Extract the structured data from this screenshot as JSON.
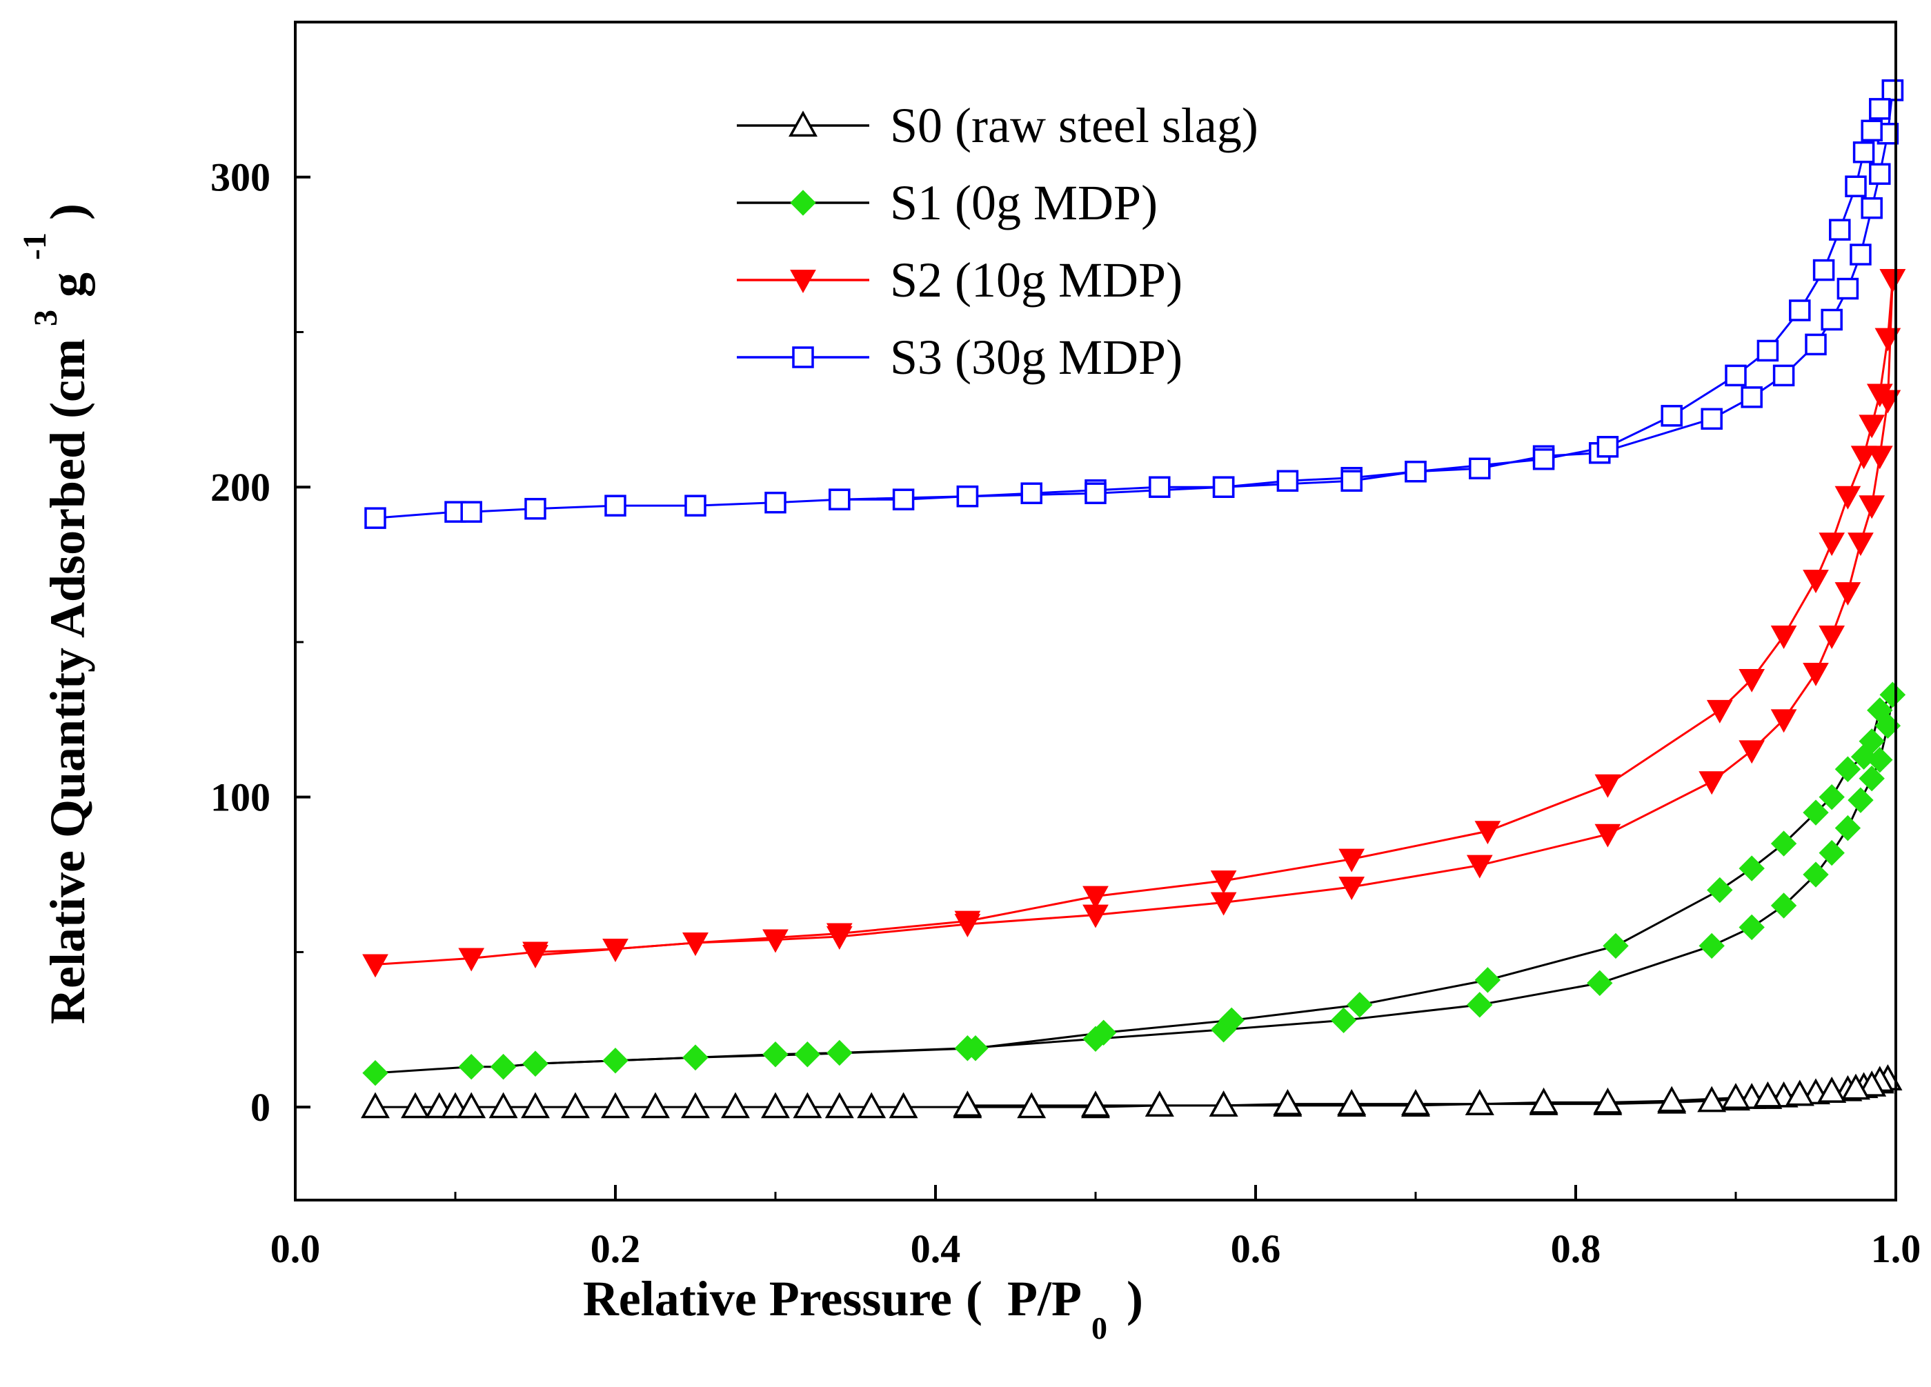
{
  "chart_data": {
    "type": "line",
    "xlabel": "Relative Pressure",
    "xlabel_unit": {
      "open": "(",
      "main": "P/P",
      "sub": "0",
      "close": ")"
    },
    "ylabel": "Relative Quantity Adsorbed (cm",
    "ylabel_unit": {
      "sup3": "3",
      "mid": " g",
      "sup_neg1": "-1",
      "close": ")"
    },
    "xlim": [
      0.0,
      1.0
    ],
    "ylim": [
      -30,
      350
    ],
    "x_ticks": [
      "0.0",
      "0.2",
      "0.4",
      "0.6",
      "0.8",
      "1.0"
    ],
    "y_ticks": [
      "0",
      "100",
      "200",
      "300"
    ],
    "legend_position": "top-center",
    "series": [
      {
        "name": "S0 (raw steel slag)",
        "color": "#000000",
        "marker": "triangle-up-open",
        "adsorption": [
          [
            0.05,
            0
          ],
          [
            0.075,
            0
          ],
          [
            0.09,
            0
          ],
          [
            0.1,
            0
          ],
          [
            0.11,
            0
          ],
          [
            0.13,
            0
          ],
          [
            0.15,
            0
          ],
          [
            0.175,
            0
          ],
          [
            0.2,
            0
          ],
          [
            0.225,
            0
          ],
          [
            0.25,
            0
          ],
          [
            0.275,
            0
          ],
          [
            0.3,
            0
          ],
          [
            0.32,
            0
          ],
          [
            0.34,
            0
          ],
          [
            0.36,
            0
          ],
          [
            0.38,
            0
          ],
          [
            0.42,
            0
          ],
          [
            0.46,
            0
          ],
          [
            0.5,
            0
          ],
          [
            0.54,
            0.5
          ],
          [
            0.58,
            0.5
          ],
          [
            0.62,
            0.5
          ],
          [
            0.66,
            0.5
          ],
          [
            0.7,
            0.5
          ],
          [
            0.74,
            1
          ],
          [
            0.78,
            1
          ],
          [
            0.82,
            1
          ],
          [
            0.86,
            1.5
          ],
          [
            0.885,
            2
          ],
          [
            0.9,
            2.5
          ],
          [
            0.91,
            3
          ],
          [
            0.92,
            3
          ],
          [
            0.93,
            3.5
          ],
          [
            0.94,
            4
          ],
          [
            0.95,
            4.5
          ],
          [
            0.96,
            5
          ],
          [
            0.97,
            5.5
          ],
          [
            0.98,
            6.5
          ],
          [
            0.99,
            8
          ],
          [
            0.995,
            9
          ]
        ],
        "desorption": [
          [
            0.995,
            9
          ],
          [
            0.99,
            8.5
          ],
          [
            0.985,
            7
          ],
          [
            0.975,
            6
          ],
          [
            0.96,
            5
          ],
          [
            0.94,
            4
          ],
          [
            0.92,
            3.5
          ],
          [
            0.9,
            3
          ],
          [
            0.86,
            2
          ],
          [
            0.82,
            1.5
          ],
          [
            0.78,
            1.5
          ],
          [
            0.74,
            1
          ],
          [
            0.7,
            1
          ],
          [
            0.66,
            1
          ],
          [
            0.62,
            1
          ],
          [
            0.58,
            0.5
          ],
          [
            0.54,
            0.5
          ],
          [
            0.5,
            0.5
          ],
          [
            0.42,
            0.5
          ]
        ]
      },
      {
        "name": "S1 (0g MDP)",
        "color": "#000000",
        "marker_color": "#22e010",
        "marker": "diamond-filled",
        "adsorption": [
          [
            0.05,
            11
          ],
          [
            0.11,
            13
          ],
          [
            0.13,
            13
          ],
          [
            0.15,
            14
          ],
          [
            0.2,
            15
          ],
          [
            0.25,
            16
          ],
          [
            0.3,
            17
          ],
          [
            0.34,
            17.5
          ],
          [
            0.42,
            19
          ],
          [
            0.5,
            22
          ],
          [
            0.58,
            25
          ],
          [
            0.655,
            28
          ],
          [
            0.74,
            33
          ],
          [
            0.815,
            40
          ],
          [
            0.885,
            52
          ],
          [
            0.91,
            58
          ],
          [
            0.93,
            65
          ],
          [
            0.95,
            75
          ],
          [
            0.96,
            82
          ],
          [
            0.97,
            90
          ],
          [
            0.978,
            99
          ],
          [
            0.985,
            106
          ],
          [
            0.99,
            112
          ],
          [
            0.995,
            123
          ],
          [
            0.998,
            133
          ]
        ],
        "desorption": [
          [
            0.998,
            133
          ],
          [
            0.99,
            128
          ],
          [
            0.985,
            118
          ],
          [
            0.98,
            113
          ],
          [
            0.97,
            109
          ],
          [
            0.96,
            100
          ],
          [
            0.95,
            95
          ],
          [
            0.93,
            85
          ],
          [
            0.91,
            77
          ],
          [
            0.89,
            70
          ],
          [
            0.825,
            52
          ],
          [
            0.745,
            41
          ],
          [
            0.665,
            33
          ],
          [
            0.585,
            28
          ],
          [
            0.505,
            24
          ],
          [
            0.425,
            19
          ],
          [
            0.32,
            17
          ],
          [
            0.25,
            16
          ],
          [
            0.15,
            14
          ],
          [
            0.13,
            13
          ]
        ]
      },
      {
        "name": "S2 (10g MDP)",
        "color": "#ff0000",
        "marker": "triangle-down-filled",
        "adsorption": [
          [
            0.05,
            46
          ],
          [
            0.11,
            48
          ],
          [
            0.15,
            50
          ],
          [
            0.2,
            51
          ],
          [
            0.25,
            53
          ],
          [
            0.3,
            54
          ],
          [
            0.34,
            55
          ],
          [
            0.42,
            59
          ],
          [
            0.5,
            62
          ],
          [
            0.58,
            66
          ],
          [
            0.66,
            71
          ],
          [
            0.74,
            78
          ],
          [
            0.82,
            88
          ],
          [
            0.885,
            105
          ],
          [
            0.91,
            115
          ],
          [
            0.93,
            125
          ],
          [
            0.95,
            140
          ],
          [
            0.96,
            152
          ],
          [
            0.97,
            166
          ],
          [
            0.978,
            182
          ],
          [
            0.985,
            194
          ],
          [
            0.99,
            210
          ],
          [
            0.995,
            228
          ],
          [
            0.998,
            267
          ]
        ],
        "desorption": [
          [
            0.998,
            267
          ],
          [
            0.995,
            248
          ],
          [
            0.99,
            230
          ],
          [
            0.985,
            220
          ],
          [
            0.98,
            210
          ],
          [
            0.97,
            197
          ],
          [
            0.96,
            182
          ],
          [
            0.95,
            170
          ],
          [
            0.93,
            152
          ],
          [
            0.91,
            138
          ],
          [
            0.89,
            128
          ],
          [
            0.82,
            104
          ],
          [
            0.745,
            89
          ],
          [
            0.66,
            80
          ],
          [
            0.58,
            73
          ],
          [
            0.5,
            68
          ],
          [
            0.42,
            60
          ],
          [
            0.34,
            56
          ],
          [
            0.25,
            53
          ],
          [
            0.15,
            49
          ]
        ]
      },
      {
        "name": "S3 (30g MDP)",
        "color": "#0000ff",
        "marker": "square-open",
        "adsorption": [
          [
            0.05,
            190
          ],
          [
            0.1,
            192
          ],
          [
            0.11,
            192
          ],
          [
            0.15,
            193
          ],
          [
            0.2,
            194
          ],
          [
            0.25,
            194
          ],
          [
            0.3,
            195
          ],
          [
            0.34,
            196
          ],
          [
            0.38,
            196
          ],
          [
            0.42,
            197
          ],
          [
            0.46,
            198
          ],
          [
            0.5,
            199
          ],
          [
            0.54,
            200
          ],
          [
            0.58,
            200
          ],
          [
            0.62,
            202
          ],
          [
            0.66,
            203
          ],
          [
            0.7,
            205
          ],
          [
            0.74,
            206
          ],
          [
            0.78,
            210
          ],
          [
            0.815,
            211
          ],
          [
            0.885,
            222
          ],
          [
            0.91,
            229
          ],
          [
            0.93,
            236
          ],
          [
            0.95,
            246
          ],
          [
            0.96,
            254
          ],
          [
            0.97,
            264
          ],
          [
            0.978,
            275
          ],
          [
            0.985,
            290
          ],
          [
            0.99,
            301
          ],
          [
            0.995,
            314
          ],
          [
            0.998,
            328
          ]
        ],
        "desorption": [
          [
            0.998,
            328
          ],
          [
            0.99,
            322
          ],
          [
            0.985,
            315
          ],
          [
            0.98,
            308
          ],
          [
            0.975,
            297
          ],
          [
            0.965,
            283
          ],
          [
            0.955,
            270
          ],
          [
            0.94,
            257
          ],
          [
            0.92,
            244
          ],
          [
            0.9,
            236
          ],
          [
            0.86,
            223
          ],
          [
            0.82,
            213
          ],
          [
            0.78,
            209
          ],
          [
            0.7,
            205
          ],
          [
            0.66,
            202
          ],
          [
            0.58,
            200
          ],
          [
            0.5,
            198
          ],
          [
            0.42,
            197
          ],
          [
            0.34,
            196
          ]
        ]
      }
    ]
  }
}
